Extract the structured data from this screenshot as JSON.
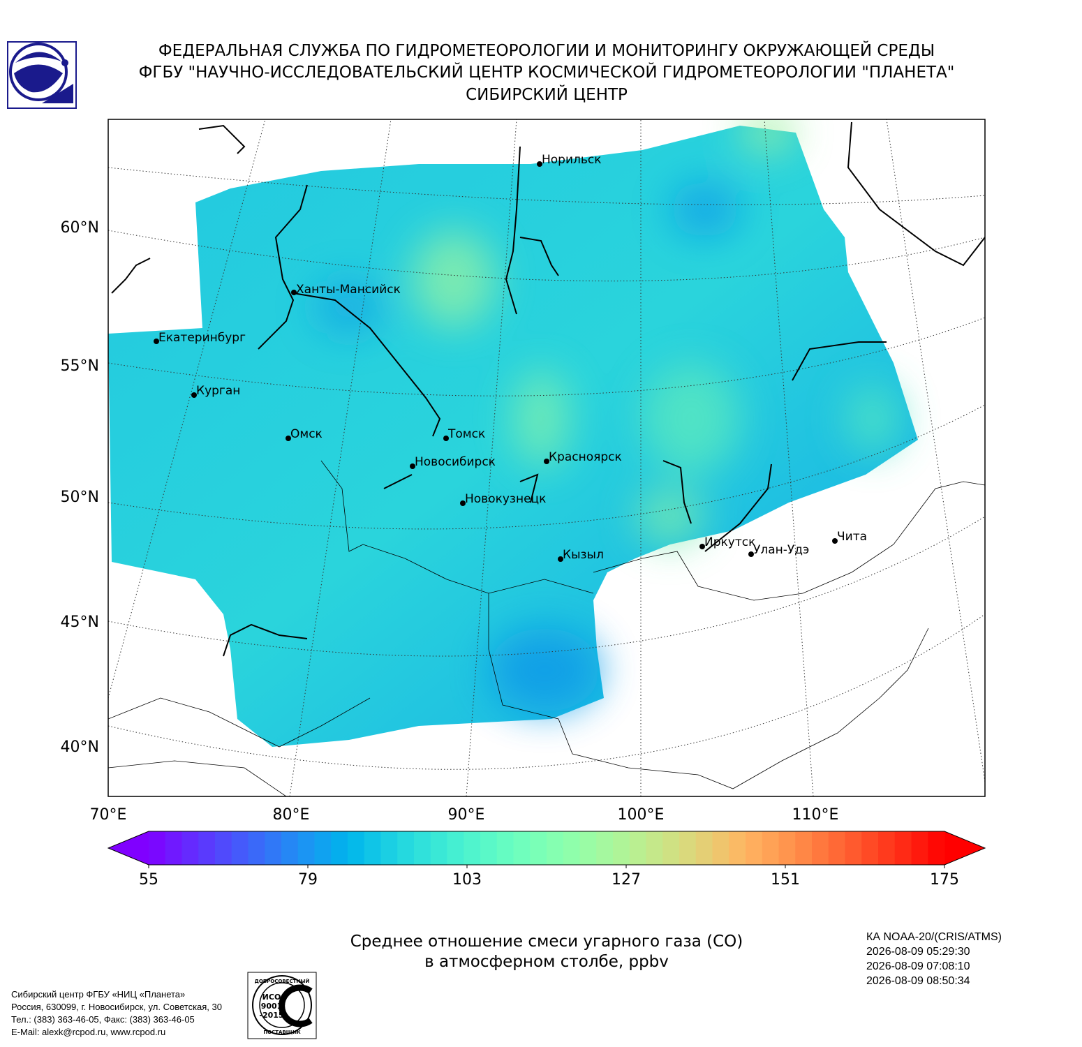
{
  "header": {
    "lines": [
      "ФЕДЕРАЛЬНАЯ СЛУЖБА ПО ГИДРОМЕТЕОРОЛОГИИ И МОНИТОРИНГУ ОКРУЖАЮЩЕЙ СРЕДЫ",
      "ФГБУ \"НАУЧНО-ИССЛЕДОВАТЕЛЬСКИЙ ЦЕНТР КОСМИЧЕСКОЙ ГИДРОМЕТЕОРОЛОГИИ \"ПЛАНЕТА\"",
      "СИБИРСКИЙ ЦЕНТР"
    ]
  },
  "map": {
    "latitude_labels": [
      "60°N",
      "55°N",
      "50°N",
      "45°N",
      "40°N"
    ],
    "longitude_labels": [
      "70°E",
      "80°E",
      "90°E",
      "100°E",
      "110°E"
    ],
    "cities": [
      "Норильск",
      "Ханты-Мансийск",
      "Екатеринбург",
      "Курган",
      "Омск",
      "Томск",
      "Новосибирск",
      "Красноярск",
      "Новокузнецк",
      "Кызыл",
      "Иркутск",
      "Улан-Удэ",
      "Чита"
    ]
  },
  "colorbar": {
    "range": [
      55,
      175
    ],
    "ticks": [
      55,
      79,
      103,
      127,
      151,
      175
    ]
  },
  "caption": {
    "lines": [
      "Среднее отношение смеси угарного газа (CO)",
      "в атмосферном столбе, ppbv"
    ]
  },
  "satellite": {
    "lines": [
      "КА NOAA-20/(CRIS/ATMS)",
      "2026-08-09 05:29:30",
      "2026-08-09 07:08:10",
      "2026-08-09 08:50:34"
    ]
  },
  "footer": {
    "lines": [
      "Сибирский центр ФГБУ «НИЦ «Планета»",
      "Россия, 630099, г. Новосибирск, ул. Советская, 30",
      "Тел.: (383) 363-46-05, Факс: (383) 363-46-05",
      "E-Mail: alexk@rcpod.ru, www.rcpod.ru"
    ]
  },
  "certificate": {
    "top": "ДОБРОСОВЕСТНЫЙ",
    "middle": [
      "ИСО",
      "9001",
      "-2015"
    ],
    "bottom": "ПОСТАВЩИК"
  }
}
